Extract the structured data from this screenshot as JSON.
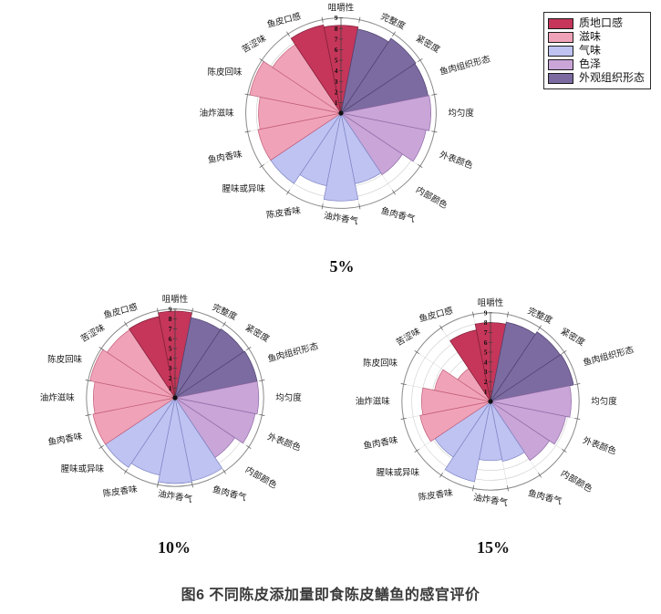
{
  "page": {
    "caption": "图6 不同陈皮添加量即食陈皮鳝鱼的感官评价"
  },
  "chart_data": {
    "type": "rose",
    "axis": {
      "min": 0,
      "max": 9,
      "ticks": [
        1,
        2,
        3,
        4,
        5,
        6,
        7,
        8,
        9
      ]
    },
    "legend_position": "top-right",
    "categories": [
      "咀嚼性",
      "完整度",
      "紧密度",
      "鱼肉组织形态",
      "均匀度",
      "外表颜色",
      "内部颜色",
      "鱼肉香气",
      "油炸香气",
      "陈皮香味",
      "腥味或异味",
      "鱼肉香味",
      "油炸滋味",
      "陈皮回味",
      "苦涩味",
      "鱼皮口感"
    ],
    "category_group": [
      "质地口感",
      "外观组织形态",
      "外观组织形态",
      "外观组织形态",
      "色泽",
      "色泽",
      "色泽",
      "气味",
      "气味",
      "气味",
      "气味",
      "滋味",
      "滋味",
      "滋味",
      "滋味",
      "质地口感"
    ],
    "groups": [
      {
        "name": "质地口感",
        "color": "#C5365A",
        "edge": "#7E1F38"
      },
      {
        "name": "滋味",
        "color": "#F0A3B8",
        "edge": "#C25D78"
      },
      {
        "name": "气味",
        "color": "#BFC3F2",
        "edge": "#7E84C4"
      },
      {
        "name": "色泽",
        "color": "#C9A5D8",
        "edge": "#8F6BA6"
      },
      {
        "name": "外观组织形态",
        "color": "#7C6BA0",
        "edge": "#4E4270"
      }
    ],
    "series": [
      {
        "name": "5%",
        "values": [
          8.3,
          8.1,
          8.5,
          8.4,
          8.5,
          8.2,
          7.0,
          6.8,
          8.3,
          7.0,
          8.0,
          8.0,
          7.8,
          8.8,
          7.8,
          8.5
        ]
      },
      {
        "name": "10%",
        "values": [
          8.8,
          8.3,
          8.4,
          8.5,
          8.5,
          8.3,
          7.3,
          8.6,
          8.7,
          8.0,
          8.5,
          8.5,
          8.3,
          8.8,
          8.3,
          8.4
        ]
      },
      {
        "name": "15%",
        "values": [
          8.0,
          8.2,
          8.5,
          8.6,
          8.2,
          7.8,
          7.2,
          6.2,
          6.0,
          8.3,
          6.8,
          7.3,
          7.0,
          5.8,
          4.0,
          7.4
        ]
      }
    ]
  }
}
